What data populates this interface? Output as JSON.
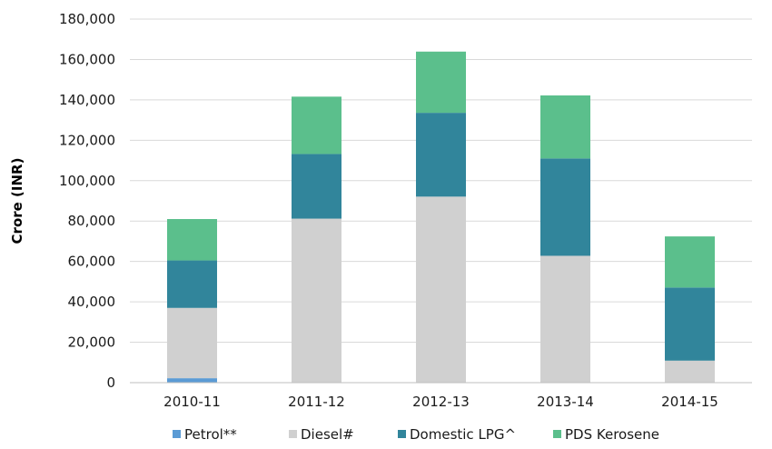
{
  "chart_data": {
    "type": "bar",
    "stacked": true,
    "categories": [
      "2010-11",
      "2011-12",
      "2012-13",
      "2013-14",
      "2014-15"
    ],
    "series": [
      {
        "name": "Petrol**",
        "color": "#5b9bd5",
        "values": [
          2200,
          0,
          0,
          0,
          0
        ]
      },
      {
        "name": "Diesel#",
        "color": "#d0d0d0",
        "values": [
          34800,
          81200,
          92100,
          62800,
          10900
        ]
      },
      {
        "name": "Domestic LPG^",
        "color": "#31859b",
        "values": [
          23500,
          32000,
          41500,
          48200,
          36200
        ]
      },
      {
        "name": "PDS Kerosene",
        "color": "#5bbf8c",
        "values": [
          20500,
          28400,
          30300,
          31200,
          25300
        ]
      }
    ],
    "ylabel": "Crore (INR)",
    "xlabel": "",
    "ylim": [
      0,
      180000
    ],
    "yticks": [
      "0",
      "20,000",
      "40,000",
      "60,000",
      "80,000",
      "100,000",
      "120,000",
      "140,000",
      "160,000",
      "180,000"
    ],
    "grid": true,
    "legend": "bottom"
  }
}
